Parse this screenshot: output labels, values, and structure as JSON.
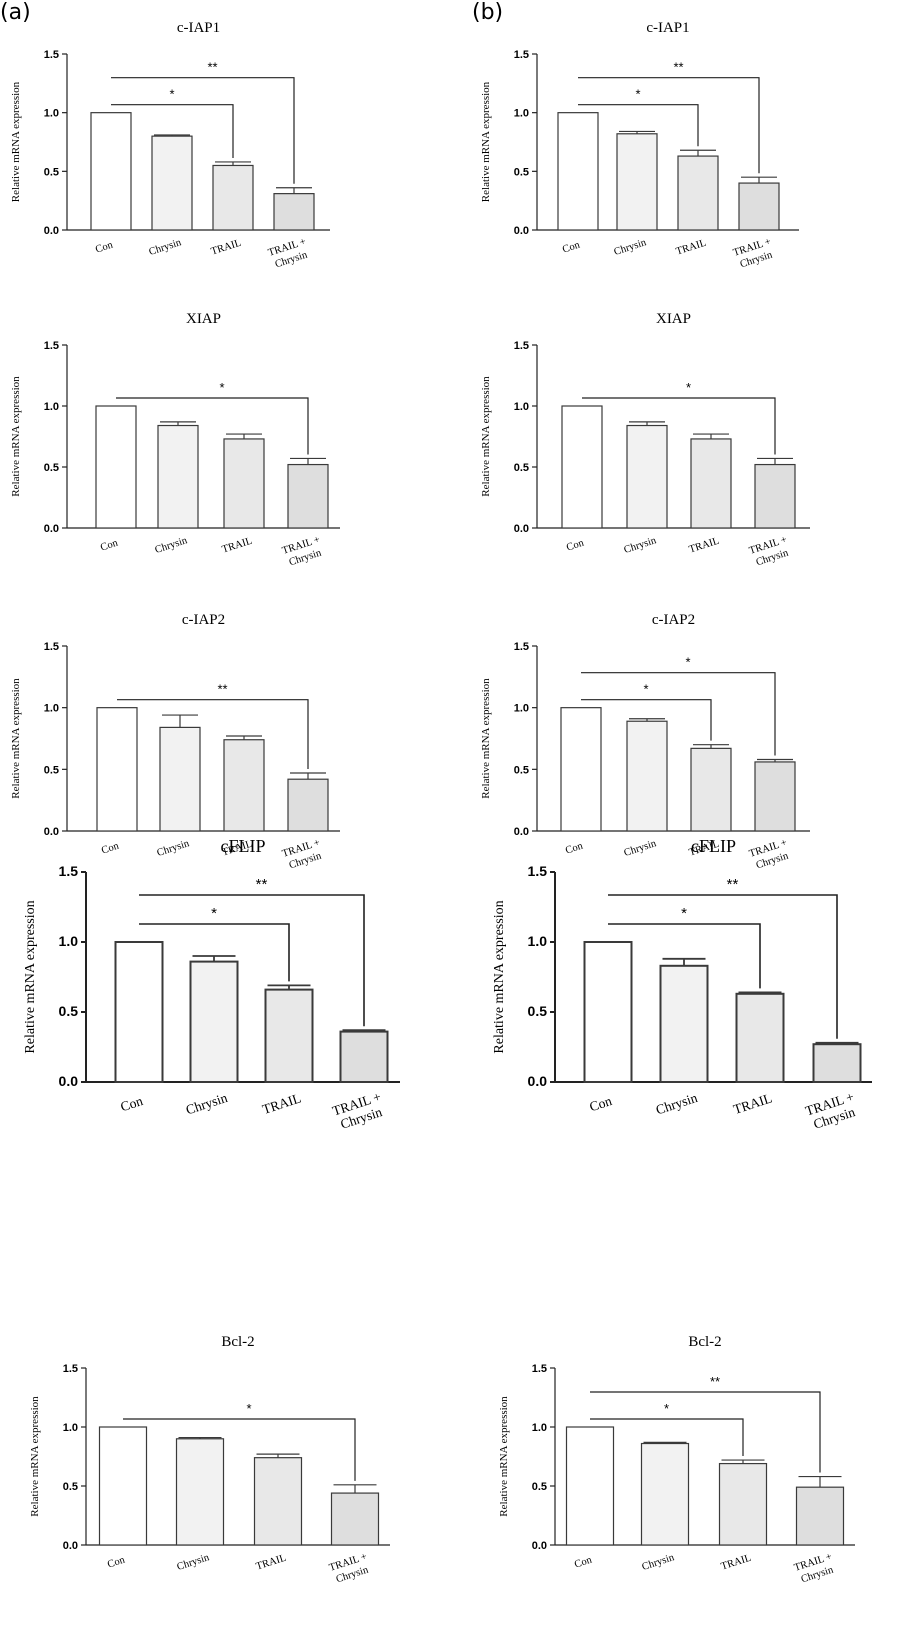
{
  "figure": {
    "panel_labels": [
      "(a)",
      "(b)"
    ]
  },
  "colors": {
    "axis": "#222222",
    "bar_stroke": "#3a3a3a",
    "bar_fills": [
      "#ffffff",
      "#f2f2f2",
      "#e8e8e8",
      "#dedede"
    ]
  },
  "chart_data": [
    {
      "panel": "(a)",
      "type": "bar",
      "title": "c-IAP1",
      "ylabel": "Relative mRNA expression",
      "ylim": [
        0,
        1.5
      ],
      "yticks": [
        "0.0",
        "0.5",
        "1.0",
        "1.5"
      ],
      "categories": [
        "Con",
        "Chrysin",
        "TRAIL",
        "TRAIL +\nChrysin"
      ],
      "values": [
        1.0,
        0.8,
        0.55,
        0.31
      ],
      "errors": [
        0.0,
        0.01,
        0.03,
        0.05
      ],
      "significance": [
        {
          "from": 0,
          "to": 2,
          "label": "*"
        },
        {
          "from": 0,
          "to": 3,
          "label": "**"
        }
      ]
    },
    {
      "panel": "(b)",
      "type": "bar",
      "title": "c-IAP1",
      "ylabel": "Relative mRNA expression",
      "ylim": [
        0,
        1.5
      ],
      "yticks": [
        "0.0",
        "0.5",
        "1.0",
        "1.5"
      ],
      "categories": [
        "Con",
        "Chrysin",
        "TRAIL",
        "TRAIL +\nChrysin"
      ],
      "values": [
        1.0,
        0.82,
        0.63,
        0.4
      ],
      "errors": [
        0.0,
        0.02,
        0.05,
        0.05
      ],
      "significance": [
        {
          "from": 0,
          "to": 2,
          "label": "*"
        },
        {
          "from": 0,
          "to": 3,
          "label": "**"
        }
      ]
    },
    {
      "panel": "(a)",
      "type": "bar",
      "title": "XIAP",
      "ylabel": "Relative mRNA expression",
      "ylim": [
        0,
        1.5
      ],
      "yticks": [
        "0.0",
        "0.5",
        "1.0",
        "1.5"
      ],
      "categories": [
        "Con",
        "Chrysin",
        "TRAIL",
        "TRAIL +\nChrysin"
      ],
      "values": [
        1.0,
        0.84,
        0.73,
        0.52
      ],
      "errors": [
        0.0,
        0.03,
        0.04,
        0.05
      ],
      "significance": [
        {
          "from": 0,
          "to": 3,
          "label": "*"
        }
      ]
    },
    {
      "panel": "(b)",
      "type": "bar",
      "title": "XIAP",
      "ylabel": "Relative mRNA expression",
      "ylim": [
        0,
        1.5
      ],
      "yticks": [
        "0.0",
        "0.5",
        "1.0",
        "1.5"
      ],
      "categories": [
        "Con",
        "Chrysin",
        "TRAIL",
        "TRAIL +\nChrysin"
      ],
      "values": [
        1.0,
        0.84,
        0.73,
        0.52
      ],
      "errors": [
        0.0,
        0.03,
        0.04,
        0.05
      ],
      "significance": [
        {
          "from": 0,
          "to": 3,
          "label": "*"
        }
      ]
    },
    {
      "panel": "(a)",
      "type": "bar",
      "title": "c-IAP2",
      "ylabel": "Relative mRNA expression",
      "ylim": [
        0,
        1.5
      ],
      "yticks": [
        "0.0",
        "0.5",
        "1.0",
        "1.5"
      ],
      "categories": [
        "Con",
        "Chrysin",
        "TRAIL",
        "TRAIL +\nChrysin"
      ],
      "values": [
        1.0,
        0.84,
        0.74,
        0.42
      ],
      "errors": [
        0.0,
        0.1,
        0.03,
        0.05
      ],
      "significance": [
        {
          "from": 0,
          "to": 3,
          "label": "**"
        }
      ]
    },
    {
      "panel": "(b)",
      "type": "bar",
      "title": "c-IAP2",
      "ylabel": "Relative mRNA expression",
      "ylim": [
        0,
        1.5
      ],
      "yticks": [
        "0.0",
        "0.5",
        "1.0",
        "1.5"
      ],
      "categories": [
        "Con",
        "Chrysin",
        "TRAIL",
        "TRAIL +\nChrysin"
      ],
      "values": [
        1.0,
        0.89,
        0.67,
        0.56
      ],
      "errors": [
        0.0,
        0.02,
        0.03,
        0.02
      ],
      "significance": [
        {
          "from": 0,
          "to": 2,
          "label": "*"
        },
        {
          "from": 0,
          "to": 3,
          "label": "*"
        }
      ]
    },
    {
      "panel": "(a)",
      "type": "bar",
      "title": "cFLIP",
      "ylabel": "Relative mRNA expression",
      "ylim": [
        0,
        1.5
      ],
      "yticks": [
        "0.0",
        "0.5",
        "1.0",
        "1.5"
      ],
      "categories": [
        "Con",
        "Chrysin",
        "TRAIL",
        "TRAIL +\nChrysin"
      ],
      "values": [
        1.0,
        0.86,
        0.66,
        0.36
      ],
      "errors": [
        0.0,
        0.04,
        0.03,
        0.01
      ],
      "significance": [
        {
          "from": 0,
          "to": 2,
          "label": "*"
        },
        {
          "from": 0,
          "to": 3,
          "label": "**"
        }
      ]
    },
    {
      "panel": "(b)",
      "type": "bar",
      "title": "cFLIP",
      "ylabel": "Relative mRNA expression",
      "ylim": [
        0,
        1.5
      ],
      "yticks": [
        "0.0",
        "0.5",
        "1.0",
        "1.5"
      ],
      "categories": [
        "Con",
        "Chrysin",
        "TRAIL",
        "TRAIL +\nChrysin"
      ],
      "values": [
        1.0,
        0.83,
        0.63,
        0.27
      ],
      "errors": [
        0.0,
        0.05,
        0.01,
        0.01
      ],
      "significance": [
        {
          "from": 0,
          "to": 2,
          "label": "*"
        },
        {
          "from": 0,
          "to": 3,
          "label": "**"
        }
      ]
    },
    {
      "panel": "(a)",
      "type": "bar",
      "title": "Bcl-2",
      "ylabel": "Relative mRNA expression",
      "ylim": [
        0,
        1.5
      ],
      "yticks": [
        "0.0",
        "0.5",
        "1.0",
        "1.5"
      ],
      "categories": [
        "Con",
        "Chrysin",
        "TRAIL",
        "TRAIL +\nChrysin"
      ],
      "values": [
        1.0,
        0.9,
        0.74,
        0.44
      ],
      "errors": [
        0.0,
        0.01,
        0.03,
        0.07
      ],
      "significance": [
        {
          "from": 0,
          "to": 3,
          "label": "*"
        }
      ]
    },
    {
      "panel": "(b)",
      "type": "bar",
      "title": "Bcl-2",
      "ylabel": "Relative mRNA expression",
      "ylim": [
        0,
        1.5
      ],
      "yticks": [
        "0.0",
        "0.5",
        "1.0",
        "1.5"
      ],
      "categories": [
        "Con",
        "Chrysin",
        "TRAIL",
        "TRAIL +\nChrysin"
      ],
      "values": [
        1.0,
        0.86,
        0.69,
        0.49
      ],
      "errors": [
        0.0,
        0.01,
        0.03,
        0.09
      ],
      "significance": [
        {
          "from": 0,
          "to": 2,
          "label": "*"
        },
        {
          "from": 0,
          "to": 3,
          "label": "**"
        }
      ]
    }
  ]
}
